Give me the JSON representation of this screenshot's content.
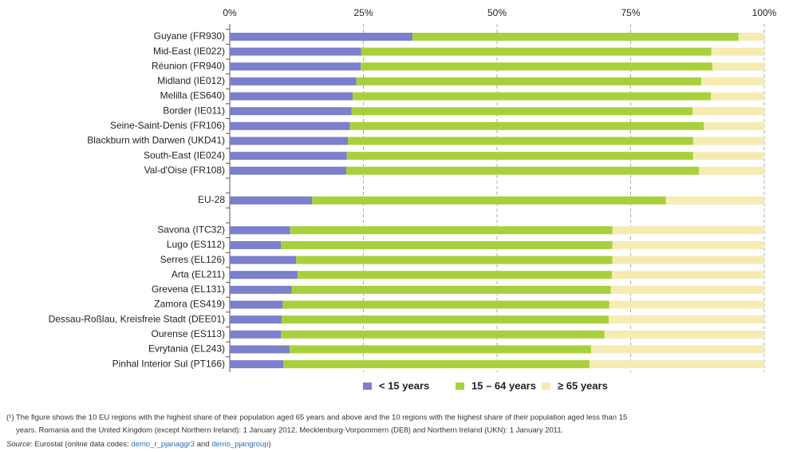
{
  "chart_data": {
    "type": "stacked_bar_horizontal",
    "categories": [
      "Guyane (FR930)",
      "Mid-East (IE022)",
      "Réunion (FR940)",
      "Midland (IE012)",
      "Melilla (ES640)",
      "Border (IE011)",
      "Seine-Saint-Denis (FR106)",
      "Blackburn with Darwen (UKD41)",
      "South-East (IE024)",
      "Val-d'Oise (FR108)",
      null,
      "EU-28",
      null,
      "Savona (ITC32)",
      "Lugo (ES112)",
      "Serres (EL126)",
      "Arta (EL211)",
      "Grevena (EL131)",
      "Zamora (ES419)",
      "Dessau-Roßlau, Kreisfreie Stadt (DEE01)",
      "Ourense (ES113)",
      "Evrytania (EL243)",
      "Pinhal Interior Sul (PT166)"
    ],
    "series": [
      {
        "name": "< 15 years",
        "color": "#7b80cc",
        "values": [
          34.2,
          24.6,
          24.5,
          23.7,
          23.0,
          22.8,
          22.5,
          22.1,
          21.9,
          21.8,
          null,
          15.4,
          null,
          11.3,
          9.6,
          12.4,
          12.7,
          11.6,
          9.9,
          9.7,
          9.6,
          11.2,
          10.0
        ]
      },
      {
        "name": "15 – 64 years",
        "color": "#a9d03c",
        "values": [
          61.0,
          65.5,
          65.8,
          64.5,
          67.0,
          63.8,
          66.2,
          64.6,
          64.8,
          66.0,
          null,
          66.2,
          null,
          60.3,
          62.0,
          59.2,
          58.8,
          59.7,
          61.1,
          61.2,
          60.5,
          56.4,
          57.3
        ]
      },
      {
        "name": "≥ 65 years",
        "color": "#f6ecb2",
        "values": [
          4.8,
          9.9,
          9.7,
          11.8,
          10.0,
          13.4,
          11.3,
          13.3,
          13.3,
          12.2,
          null,
          18.4,
          null,
          28.4,
          28.4,
          28.4,
          28.5,
          28.7,
          29.0,
          29.1,
          29.9,
          32.4,
          32.7
        ]
      }
    ],
    "xlim": [
      0,
      100
    ],
    "xticks": [
      {
        "value": 0,
        "label": "0%"
      },
      {
        "value": 25,
        "label": "25%"
      },
      {
        "value": 50,
        "label": "50%"
      },
      {
        "value": 75,
        "label": "75%"
      },
      {
        "value": 100,
        "label": "100%"
      }
    ],
    "grid": true,
    "legend": "bottom",
    "notes": [
      "(¹) The figure shows the 10 EU regions with the highest share of their population aged 65 years and above and the 10 regions with the highest share of their population aged less than 15",
      "years. Romania and the United Kingdom (except Northern Ireland): 1 January 2012. Mecklenburg-Vorpommern (DE8) and Northern Ireland (UKN): 1 January 2011."
    ],
    "source": {
      "label": "Source:",
      "text": "Eurostat (online data codes:",
      "links": [
        "demo_r_pjanaggr3",
        "demo_pjangroup"
      ],
      "joiner": "and",
      "end": ")"
    }
  }
}
